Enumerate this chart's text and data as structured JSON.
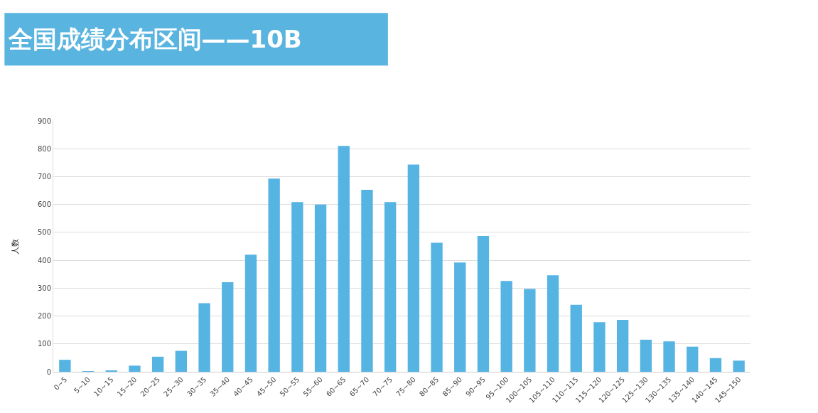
{
  "chart_data": {
    "type": "bar",
    "title": "全国成绩分布区间——10B",
    "ylabel": "人数",
    "categories": [
      "0~5",
      "5~10",
      "10~15",
      "15~20",
      "20~25",
      "25~30",
      "30~35",
      "35~40",
      "40~45",
      "45~50",
      "50~55",
      "55~60",
      "60~65",
      "65~70",
      "70~75",
      "75~80",
      "80~85",
      "85~90",
      "90~95",
      "95~100",
      "100~105",
      "105~110",
      "110~115",
      "115~120",
      "120~125",
      "125~130",
      "130~135",
      "135~140",
      "140~145",
      "145~150"
    ],
    "values": [
      43,
      1,
      5,
      22,
      54,
      75,
      246,
      321,
      420,
      693,
      609,
      600,
      810,
      653,
      609,
      743,
      463,
      392,
      487,
      326,
      297,
      346,
      240,
      178,
      186,
      115,
      109,
      90,
      49,
      40
    ],
    "color": "#56b4e3",
    "ylim": [
      0,
      900
    ],
    "yticks": [
      0,
      100,
      200,
      300,
      400,
      500,
      600,
      700,
      800,
      900
    ],
    "grid": "y"
  }
}
